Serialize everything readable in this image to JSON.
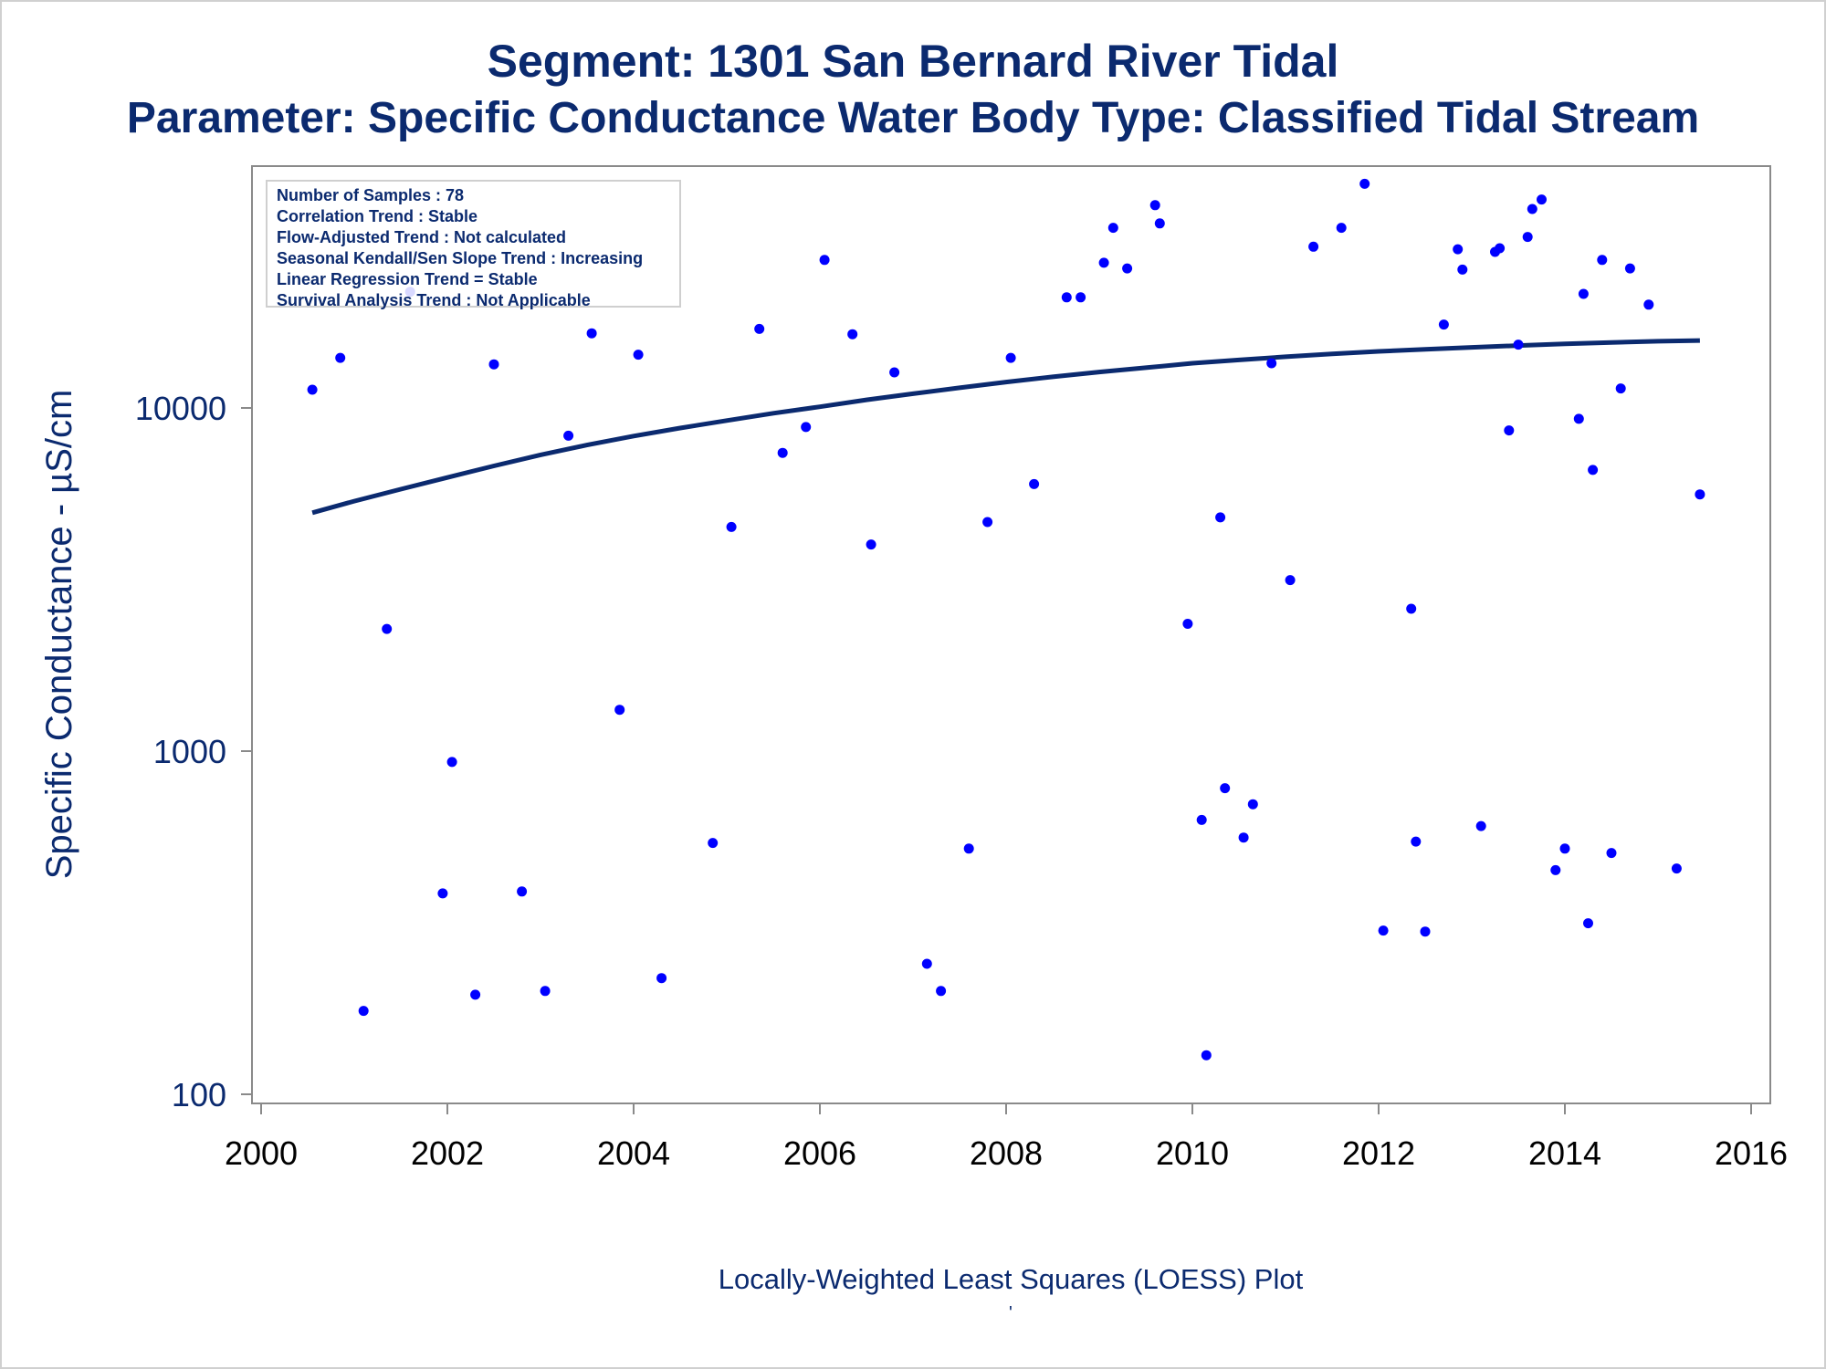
{
  "title": "Segment: 1301  San Bernard River Tidal",
  "subtitle": "Parameter: Specific Conductance   Water Body Type: Classified Tidal Stream",
  "info_box": [
    "Number of Samples : 78",
    "Correlation Trend : Stable",
    "Flow-Adjusted Trend : Not calculated",
    "Seasonal Kendall/Sen Slope Trend : Increasing",
    "Linear Regression Trend = Stable",
    "Survival Analysis Trend : Not Applicable"
  ],
  "footnote_mark": "'",
  "colors": {
    "text": "#0b2a6f",
    "points": "#0000ff",
    "loess": "#0b2a6f",
    "axis": "#8a8a8a"
  },
  "chart_data": {
    "type": "scatter",
    "title": "Segment: 1301  San Bernard River Tidal",
    "subtitle": "Parameter: Specific Conductance   Water Body Type: Classified Tidal Stream",
    "xlabel": "Locally-Weighted Least Squares (LOESS) Plot",
    "ylabel": "Specific Conductance -  µS/cm",
    "xlim": [
      2000,
      2016
    ],
    "ylim": [
      90,
      46000
    ],
    "yscale": "log",
    "xticks": [
      2000,
      2002,
      2004,
      2006,
      2008,
      2010,
      2012,
      2014,
      2016
    ],
    "xtick_labels": [
      "2000",
      "2002",
      "2004",
      "2006",
      "2008",
      "2010",
      "2012",
      "2014",
      "2016"
    ],
    "yticks": [
      100,
      1000,
      10000
    ],
    "ytick_labels": [
      "100",
      "1000",
      "10000"
    ],
    "grid": false,
    "legend": "none",
    "points": [
      {
        "x": 2000.55,
        "y": 11300
      },
      {
        "x": 2000.85,
        "y": 14000
      },
      {
        "x": 2001.1,
        "y": 175
      },
      {
        "x": 2001.35,
        "y": 2270
      },
      {
        "x": 2001.6,
        "y": 21800
      },
      {
        "x": 2001.95,
        "y": 385
      },
      {
        "x": 2002.05,
        "y": 930
      },
      {
        "x": 2002.3,
        "y": 195
      },
      {
        "x": 2002.5,
        "y": 13400
      },
      {
        "x": 2002.8,
        "y": 390
      },
      {
        "x": 2003.05,
        "y": 200
      },
      {
        "x": 2003.3,
        "y": 8300
      },
      {
        "x": 2003.55,
        "y": 16500
      },
      {
        "x": 2003.85,
        "y": 1320
      },
      {
        "x": 2004.05,
        "y": 14300
      },
      {
        "x": 2004.3,
        "y": 218
      },
      {
        "x": 2004.85,
        "y": 540
      },
      {
        "x": 2005.05,
        "y": 4500
      },
      {
        "x": 2005.35,
        "y": 17000
      },
      {
        "x": 2005.6,
        "y": 7400
      },
      {
        "x": 2005.85,
        "y": 8800
      },
      {
        "x": 2006.05,
        "y": 27000
      },
      {
        "x": 2006.35,
        "y": 16400
      },
      {
        "x": 2006.55,
        "y": 4000
      },
      {
        "x": 2006.8,
        "y": 12700
      },
      {
        "x": 2007.15,
        "y": 240
      },
      {
        "x": 2007.3,
        "y": 200
      },
      {
        "x": 2007.6,
        "y": 520
      },
      {
        "x": 2007.8,
        "y": 4650
      },
      {
        "x": 2008.05,
        "y": 14000
      },
      {
        "x": 2008.3,
        "y": 6000
      },
      {
        "x": 2008.65,
        "y": 21000
      },
      {
        "x": 2008.8,
        "y": 21000
      },
      {
        "x": 2009.05,
        "y": 26500
      },
      {
        "x": 2009.15,
        "y": 33500
      },
      {
        "x": 2009.3,
        "y": 25500
      },
      {
        "x": 2009.6,
        "y": 39000
      },
      {
        "x": 2009.65,
        "y": 34500
      },
      {
        "x": 2009.95,
        "y": 2350
      },
      {
        "x": 2010.1,
        "y": 630
      },
      {
        "x": 2010.15,
        "y": 130
      },
      {
        "x": 2010.3,
        "y": 4800
      },
      {
        "x": 2010.35,
        "y": 780
      },
      {
        "x": 2010.55,
        "y": 560
      },
      {
        "x": 2010.65,
        "y": 700
      },
      {
        "x": 2010.85,
        "y": 13500
      },
      {
        "x": 2011.05,
        "y": 3150
      },
      {
        "x": 2011.3,
        "y": 29500
      },
      {
        "x": 2011.6,
        "y": 33500
      },
      {
        "x": 2011.85,
        "y": 45000
      },
      {
        "x": 2012.05,
        "y": 300
      },
      {
        "x": 2012.35,
        "y": 2600
      },
      {
        "x": 2012.4,
        "y": 545
      },
      {
        "x": 2012.5,
        "y": 298
      },
      {
        "x": 2012.7,
        "y": 17500
      },
      {
        "x": 2012.85,
        "y": 29000
      },
      {
        "x": 2012.9,
        "y": 25300
      },
      {
        "x": 2013.1,
        "y": 605
      },
      {
        "x": 2013.25,
        "y": 28500
      },
      {
        "x": 2013.3,
        "y": 29200
      },
      {
        "x": 2013.4,
        "y": 8600
      },
      {
        "x": 2013.5,
        "y": 15300
      },
      {
        "x": 2013.6,
        "y": 31500
      },
      {
        "x": 2013.65,
        "y": 38000
      },
      {
        "x": 2013.75,
        "y": 40500
      },
      {
        "x": 2013.9,
        "y": 450
      },
      {
        "x": 2014.0,
        "y": 520
      },
      {
        "x": 2014.15,
        "y": 9300
      },
      {
        "x": 2014.2,
        "y": 21500
      },
      {
        "x": 2014.25,
        "y": 315
      },
      {
        "x": 2014.3,
        "y": 6600
      },
      {
        "x": 2014.4,
        "y": 27000
      },
      {
        "x": 2014.5,
        "y": 505
      },
      {
        "x": 2014.6,
        "y": 11400
      },
      {
        "x": 2014.7,
        "y": 25500
      },
      {
        "x": 2014.9,
        "y": 20000
      },
      {
        "x": 2015.2,
        "y": 455
      },
      {
        "x": 2015.45,
        "y": 5600
      }
    ],
    "series": [
      {
        "type": "line",
        "x": [
          2000.55,
          2001,
          2001.5,
          2002,
          2002.5,
          2003,
          2003.5,
          2004,
          2004.5,
          2005,
          2005.5,
          2006,
          2006.5,
          2007,
          2007.5,
          2008,
          2008.5,
          2009,
          2009.5,
          2010,
          2010.5,
          2011,
          2011.5,
          2012,
          2012.5,
          2013,
          2013.5,
          2014,
          2014.5,
          2015,
          2015.45
        ],
        "y": [
          4950,
          5350,
          5800,
          6270,
          6780,
          7300,
          7800,
          8280,
          8740,
          9190,
          9650,
          10080,
          10560,
          11000,
          11450,
          11900,
          12320,
          12730,
          13100,
          13500,
          13800,
          14100,
          14380,
          14620,
          14820,
          15020,
          15200,
          15380,
          15520,
          15650,
          15720
        ]
      }
    ]
  }
}
